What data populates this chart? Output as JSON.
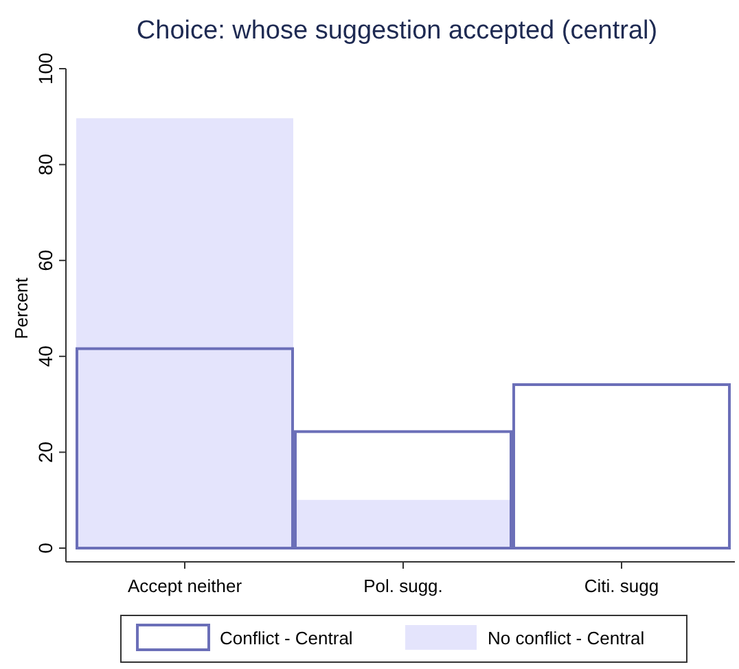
{
  "chart_data": {
    "type": "bar",
    "title": "Choice: whose suggestion accepted (central)",
    "ylabel": "Percent",
    "categories": [
      "Accept neither",
      "Pol. sugg.",
      "Citi. sugg"
    ],
    "series": [
      {
        "name": "Conflict - Central",
        "color": "#6b6fb8",
        "values": [
          41.6,
          24.3,
          34.1
        ]
      },
      {
        "name": "No conflict - Central",
        "color": "#e4e4fc",
        "values": [
          89.8,
          10.2,
          0
        ]
      }
    ],
    "ylim": [
      0,
      100
    ],
    "yticks": [
      0,
      20,
      40,
      60,
      80,
      100
    ],
    "grid": false,
    "legend": "bottom"
  }
}
